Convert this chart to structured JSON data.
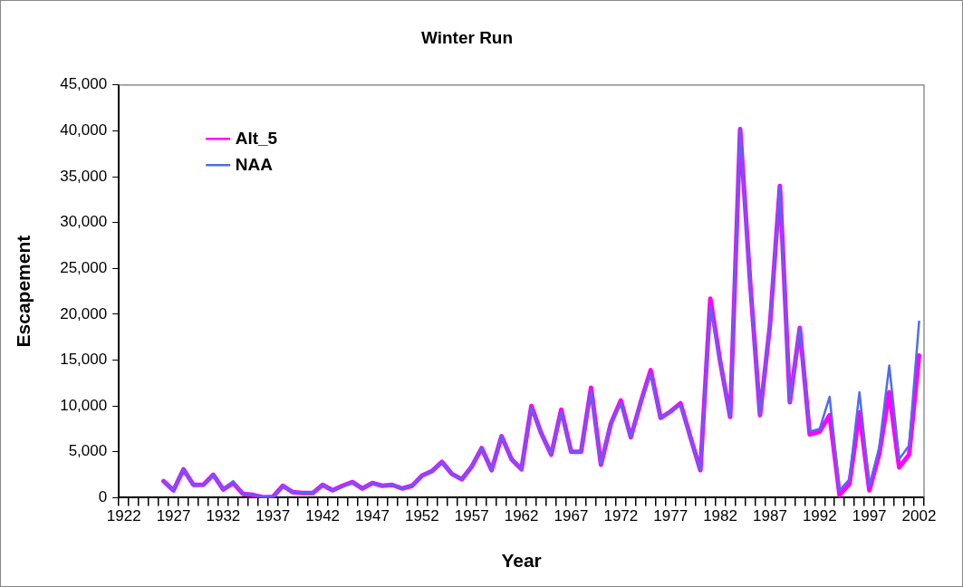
{
  "chart_data": {
    "type": "line",
    "title": "Winter Run",
    "xlabel": "Year",
    "ylabel": "Escapement",
    "categories": [
      "1922",
      null,
      null,
      null,
      null,
      "1927",
      null,
      null,
      null,
      null,
      "1932",
      null,
      null,
      null,
      null,
      "1937",
      null,
      null,
      null,
      null,
      "1942",
      null,
      null,
      null,
      null,
      "1947",
      null,
      null,
      null,
      null,
      "1952",
      null,
      null,
      null,
      null,
      "1957",
      null,
      null,
      null,
      null,
      "1962",
      null,
      null,
      null,
      null,
      "1967",
      null,
      null,
      null,
      null,
      "1972",
      null,
      null,
      null,
      null,
      "1977",
      null,
      null,
      null,
      null,
      "1982",
      null,
      null,
      null,
      null,
      "1987",
      null,
      null,
      null,
      null,
      "1992",
      null,
      null,
      null,
      null,
      "1997",
      null,
      null,
      null,
      null,
      "2002"
    ],
    "series": [
      {
        "name": "Alt_5",
        "color": "#ff00ff",
        "values": [
          null,
          null,
          null,
          null,
          1800,
          800,
          3100,
          1400,
          1400,
          2500,
          900,
          1600,
          400,
          300,
          50,
          100,
          1300,
          600,
          500,
          500,
          1400,
          800,
          1300,
          1700,
          1000,
          1600,
          1300,
          1400,
          1000,
          1300,
          2400,
          2900,
          3900,
          2600,
          2000,
          3400,
          5400,
          3000,
          6700,
          4200,
          3100,
          10000,
          7000,
          4700,
          9600,
          5000,
          5000,
          12000,
          3600,
          8100,
          10600,
          6600,
          10400,
          13900,
          8700,
          9400,
          10300,
          6600,
          3000,
          21700,
          14800,
          8800,
          40200,
          23600,
          9000,
          18800,
          34000,
          10400,
          18500,
          6900,
          7200,
          9000,
          300,
          1500,
          9300,
          800,
          4800,
          11500,
          3300,
          4700,
          15500
        ]
      },
      {
        "name": "NAA",
        "color": "#4f6bf0",
        "values": [
          null,
          null,
          null,
          null,
          1800,
          800,
          3100,
          1400,
          1300,
          2500,
          900,
          1800,
          400,
          300,
          50,
          100,
          1300,
          600,
          500,
          500,
          1400,
          800,
          1200,
          1700,
          1000,
          1600,
          1300,
          1400,
          1000,
          1300,
          2400,
          2900,
          3900,
          2600,
          2000,
          3400,
          5400,
          3000,
          6700,
          4200,
          3100,
          9800,
          7000,
          4700,
          9300,
          5000,
          5000,
          11600,
          3600,
          8100,
          10300,
          6600,
          10400,
          13500,
          8700,
          9400,
          10100,
          6600,
          3000,
          20800,
          14800,
          8800,
          40200,
          23600,
          9000,
          18800,
          34000,
          10400,
          18500,
          7200,
          7500,
          11000,
          800,
          2000,
          11500,
          1300,
          5500,
          14400,
          4200,
          5700,
          19200
        ]
      }
    ],
    "ylim": [
      0,
      45000
    ],
    "yticks": [
      0,
      {
        "value": 5000,
        "label": "5,000"
      },
      {
        "value": 10000,
        "label": "10,000"
      },
      {
        "value": 15000,
        "label": "15,000"
      },
      {
        "value": 20000,
        "label": "20,000"
      },
      {
        "value": 25000,
        "label": "25,000"
      },
      {
        "value": 30000,
        "label": "30,000"
      },
      {
        "value": 35000,
        "label": "35,000"
      },
      {
        "value": 40000,
        "label": "40,000"
      },
      {
        "value": 45000,
        "label": "45,000"
      }
    ],
    "grid": false,
    "legend": "top left",
    "marker": "none",
    "line_style": "solid"
  }
}
